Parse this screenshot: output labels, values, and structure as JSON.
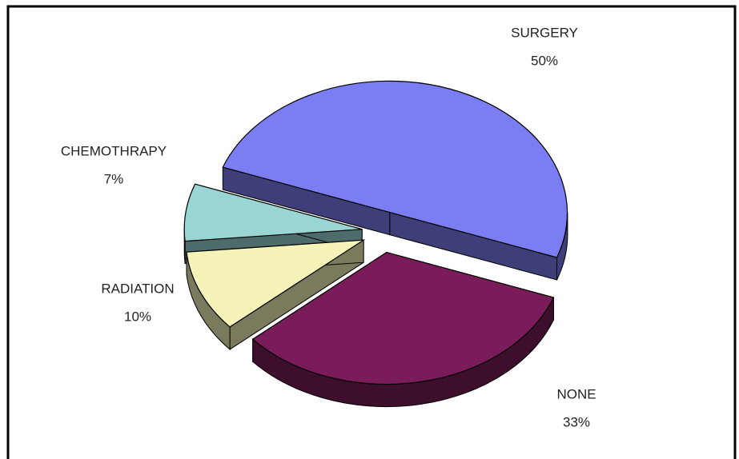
{
  "chart_data": {
    "type": "pie",
    "categories": [
      "SURGERY",
      "NONE",
      "RADIATION",
      "CHEMOTHRAPY"
    ],
    "values": [
      50,
      33,
      10,
      7
    ],
    "value_labels": [
      "50%",
      "33%",
      "10%",
      "7%"
    ],
    "colors": [
      "#7b7ef2",
      "#7b1c5a",
      "#f5f3b8",
      "#99d6d3"
    ]
  }
}
